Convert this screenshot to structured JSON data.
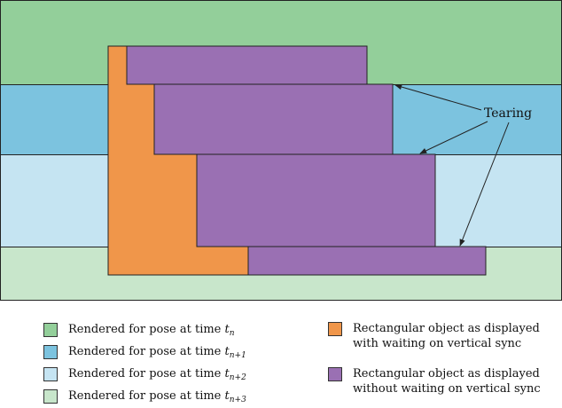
{
  "colors": {
    "pose_n": "#93CF9A",
    "pose_n1": "#7CC3DF",
    "pose_n2": "#C5E4F2",
    "pose_n3": "#C8E6CB",
    "object_vsync": "#F0964A",
    "object_no_vsync": "#9A70B3",
    "outline": "#222222"
  },
  "annotation": {
    "tearing_label": "Tearing"
  },
  "legend": {
    "left": [
      {
        "label": "Rendered for pose at time ",
        "var": "t",
        "sub": "n",
        "color_key": "pose_n"
      },
      {
        "label": "Rendered for pose at time ",
        "var": "t",
        "sub": "n+1",
        "color_key": "pose_n1"
      },
      {
        "label": "Rendered for pose at time ",
        "var": "t",
        "sub": "n+2",
        "color_key": "pose_n2"
      },
      {
        "label": "Rendered for pose at time ",
        "var": "t",
        "sub": "n+3",
        "color_key": "pose_n3"
      }
    ],
    "right": [
      {
        "line1": "Rectangular object as displayed",
        "line2": "with waiting on vertical sync",
        "color_key": "object_vsync"
      },
      {
        "line1": "Rectangular object as displayed",
        "line2": "without waiting on vertical sync",
        "color_key": "object_no_vsync"
      }
    ]
  }
}
